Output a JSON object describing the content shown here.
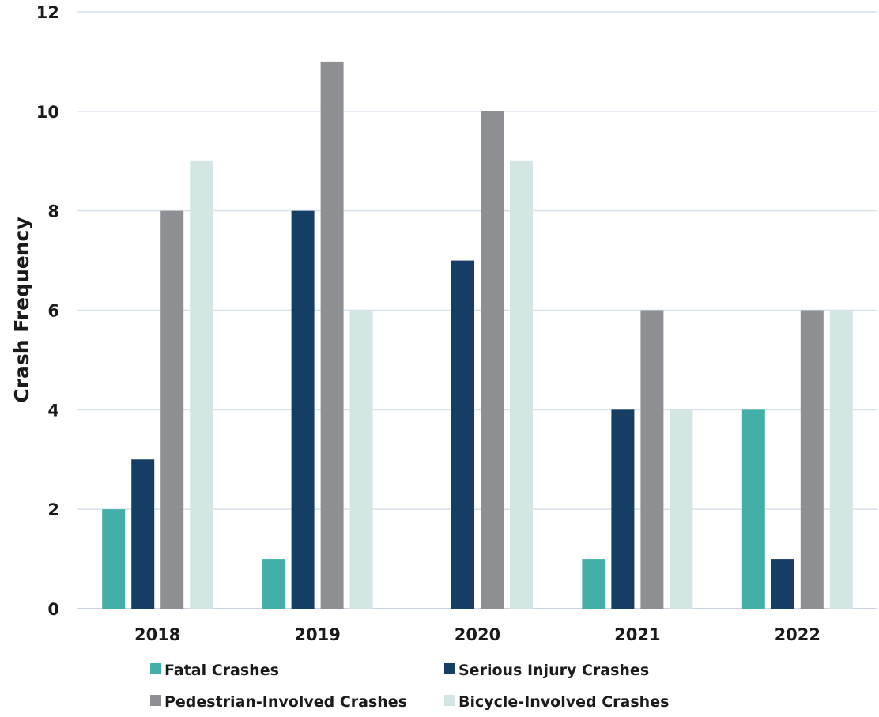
{
  "chart_data": {
    "type": "bar",
    "title": "",
    "xlabel": "",
    "ylabel": "Crash Frequency",
    "ylim": [
      0,
      12
    ],
    "yticks": [
      0,
      2,
      4,
      6,
      8,
      10,
      12
    ],
    "grid": true,
    "legend_position": "bottom",
    "categories": [
      "2018",
      "2019",
      "2020",
      "2021",
      "2022"
    ],
    "series": [
      {
        "name": "Fatal Crashes",
        "color": "#44afa8",
        "values": [
          2,
          1,
          0,
          1,
          4
        ]
      },
      {
        "name": "Serious Injury Crashes",
        "color": "#163d64",
        "values": [
          3,
          8,
          7,
          4,
          1
        ]
      },
      {
        "name": "Pedestrian-Involved Crashes",
        "color": "#8e8f93",
        "values": [
          8,
          11,
          10,
          6,
          6
        ]
      },
      {
        "name": "Bicycle-Involved Crashes",
        "color": "#d3e6e4",
        "values": [
          9,
          6,
          9,
          4,
          6
        ]
      }
    ]
  }
}
